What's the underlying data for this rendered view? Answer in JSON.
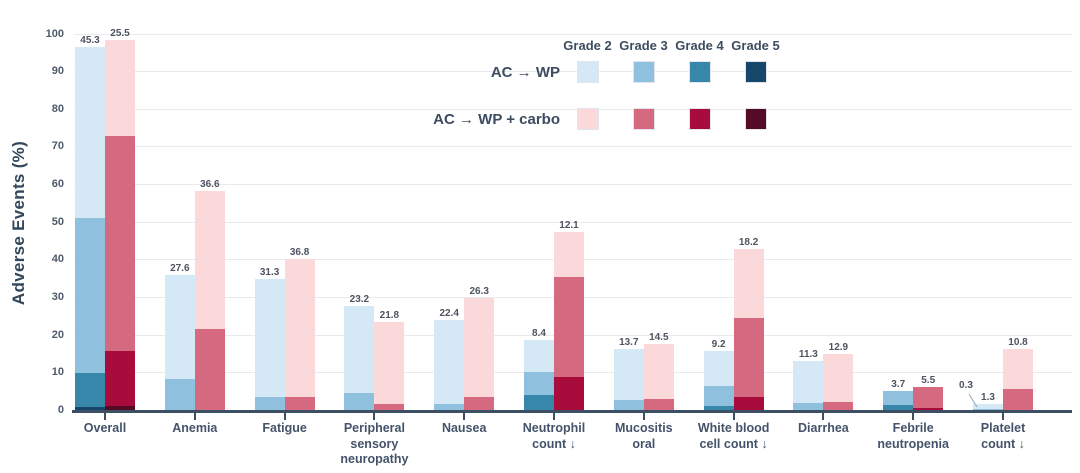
{
  "chart_data": {
    "type": "stacked-bar",
    "title": "",
    "ylabel": "Adverse Events (%)",
    "ylim": [
      0,
      100
    ],
    "yticks": [
      0,
      10,
      20,
      30,
      40,
      50,
      60,
      70,
      80,
      90,
      100
    ],
    "grid": "horizontal",
    "grades": [
      "Grade 2",
      "Grade 3",
      "Grade 4",
      "Grade 5"
    ],
    "series": [
      {
        "name": "AC → WP",
        "colors": {
          "Grade 2": "#d5e8f6",
          "Grade 3": "#8fc0de",
          "Grade 4": "#3787aa",
          "Grade 5": "#16476b"
        }
      },
      {
        "name": "AC → WP + carbo",
        "colors": {
          "Grade 2": "#fbd9da",
          "Grade 3": "#d5697f",
          "Grade 4": "#a80c3c",
          "Grade 5": "#530b26"
        }
      }
    ],
    "categories": [
      {
        "label": "Overall",
        "bars": [
          [
            {
              "g": "Grade 5",
              "v": 0.8,
              "light": true
            },
            {
              "g": "Grade 4",
              "v": 8.9
            },
            {
              "g": "Grade 3",
              "v": 41.3
            },
            {
              "g": "Grade 2",
              "v": 45.3
            }
          ],
          [
            {
              "g": "Grade 5",
              "v": 1.1,
              "light": true
            },
            {
              "g": "Grade 4",
              "v": 14.7
            },
            {
              "g": "Grade 3",
              "v": 57.1
            },
            {
              "g": "Grade 2",
              "v": 25.5
            }
          ]
        ]
      },
      {
        "label": "Anemia",
        "bars": [
          [
            {
              "g": "Grade 3",
              "v": 8.2
            },
            {
              "g": "Grade 2",
              "v": 27.6
            }
          ],
          [
            {
              "g": "Grade 3",
              "v": 21.6
            },
            {
              "g": "Grade 2",
              "v": 36.6
            }
          ]
        ]
      },
      {
        "label": "Fatigue",
        "bars": [
          [
            {
              "g": "Grade 3",
              "v": 3.4
            },
            {
              "g": "Grade 2",
              "v": 31.3
            }
          ],
          [
            {
              "g": "Grade 3",
              "v": 3.4
            },
            {
              "g": "Grade 2",
              "v": 36.8
            }
          ]
        ]
      },
      {
        "label": "Peripheral\nsensory\nneuropathy",
        "bars": [
          [
            {
              "g": "Grade 3",
              "v": 4.5
            },
            {
              "g": "Grade 2",
              "v": 23.2
            }
          ],
          [
            {
              "g": "Grade 3",
              "v": 1.6
            },
            {
              "g": "Grade 2",
              "v": 21.8
            }
          ]
        ]
      },
      {
        "label": "Nausea",
        "bars": [
          [
            {
              "g": "Grade 3",
              "v": 1.6
            },
            {
              "g": "Grade 2",
              "v": 22.4
            }
          ],
          [
            {
              "g": "Grade 3",
              "v": 3.4
            },
            {
              "g": "Grade 2",
              "v": 26.3
            }
          ]
        ]
      },
      {
        "label": "Neutrophil\ncount ↓",
        "bars": [
          [
            {
              "g": "Grade 4",
              "v": 3.9,
              "light": true
            },
            {
              "g": "Grade 3",
              "v": 6.3
            },
            {
              "g": "Grade 2",
              "v": 8.4
            }
          ],
          [
            {
              "g": "Grade 4",
              "v": 8.7
            },
            {
              "g": "Grade 3",
              "v": 26.6
            },
            {
              "g": "Grade 2",
              "v": 12.1
            }
          ]
        ]
      },
      {
        "label": "Mucositis\noral",
        "bars": [
          [
            {
              "g": "Grade 3",
              "v": 2.6
            },
            {
              "g": "Grade 2",
              "v": 13.7
            }
          ],
          [
            {
              "g": "Grade 3",
              "v": 2.9
            },
            {
              "g": "Grade 2",
              "v": 14.5
            }
          ]
        ]
      },
      {
        "label": "White blood\ncell count ↓",
        "bars": [
          [
            {
              "g": "Grade 4",
              "v": 1.1
            },
            {
              "g": "Grade 3",
              "v": 5.3
            },
            {
              "g": "Grade 2",
              "v": 9.2
            }
          ],
          [
            {
              "g": "Grade 4",
              "v": 3.4
            },
            {
              "g": "Grade 3",
              "v": 21.1
            },
            {
              "g": "Grade 2",
              "v": 18.2
            }
          ]
        ]
      },
      {
        "label": "Diarrhea",
        "bars": [
          [
            {
              "g": "Grade 3",
              "v": 1.8
            },
            {
              "g": "Grade 2",
              "v": 11.3
            }
          ],
          [
            {
              "g": "Grade 3",
              "v": 2.1
            },
            {
              "g": "Grade 2",
              "v": 12.9
            }
          ]
        ]
      },
      {
        "label": "Febrile\nneutropenia",
        "bars": [
          [
            {
              "g": "Grade 4",
              "v": 1.3
            },
            {
              "g": "Grade 3",
              "v": 3.7
            }
          ],
          [
            {
              "g": "Grade 4",
              "v": 0.5,
              "light": true
            },
            {
              "g": "Grade 3",
              "v": 5.5
            }
          ]
        ]
      },
      {
        "label": "Platelet\ncount ↓",
        "bars": [
          [
            {
              "g": "Grade 3",
              "v": 0.3,
              "callout": true
            },
            {
              "g": "Grade 2",
              "v": 1.3
            }
          ],
          [
            {
              "g": "Grade 3",
              "v": 5.5
            },
            {
              "g": "Grade 2",
              "v": 10.8
            }
          ]
        ]
      }
    ],
    "legend_position": "top-center"
  },
  "colors": {
    "axis": "#3d4f63",
    "gridline": "#e9eaec",
    "text_dark": "#3d4c60",
    "value_label": "#4d5460"
  }
}
